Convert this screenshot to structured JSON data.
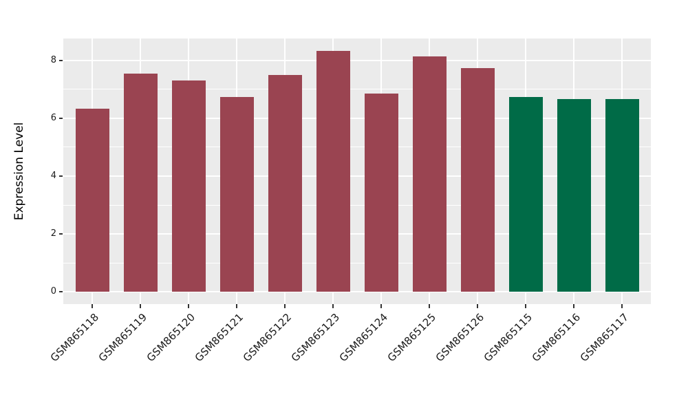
{
  "chart_data": {
    "type": "bar",
    "title": "",
    "xlabel": "",
    "ylabel": "Expression Level",
    "categories": [
      "GSM865118",
      "GSM865119",
      "GSM865120",
      "GSM865121",
      "GSM865122",
      "GSM865123",
      "GSM865124",
      "GSM865125",
      "GSM865126",
      "GSM865115",
      "GSM865116",
      "GSM865117"
    ],
    "values": [
      6.32,
      7.55,
      7.3,
      6.73,
      7.48,
      8.33,
      6.85,
      8.13,
      7.72,
      6.72,
      6.66,
      6.65
    ],
    "bar_colors": [
      "#9A4451",
      "#9A4451",
      "#9A4451",
      "#9A4451",
      "#9A4451",
      "#9A4451",
      "#9A4451",
      "#9A4451",
      "#9A4451",
      "#006B47",
      "#006B47",
      "#006B47"
    ],
    "color_legend": {
      "red_group_color": "#9A4451",
      "green_group_color": "#006B47",
      "legend_shown": "none"
    },
    "ylim": [
      -0.42,
      8.75
    ],
    "yticks": [
      0,
      2,
      4,
      6,
      8
    ],
    "ytick_labels": [
      "0",
      "2",
      "4",
      "6",
      "8"
    ],
    "yticks_minor": [
      1,
      3,
      5,
      7
    ],
    "x_tick_rotation_degrees": 45,
    "grid": "horizontal major+minor lines and vertical major lines, white on gray panel",
    "panel_bg": "#EBEBEB",
    "grid_color": "#FFFFFF",
    "tick_mark_color": "#333333",
    "axis_text_color": "#1A1A1A"
  }
}
